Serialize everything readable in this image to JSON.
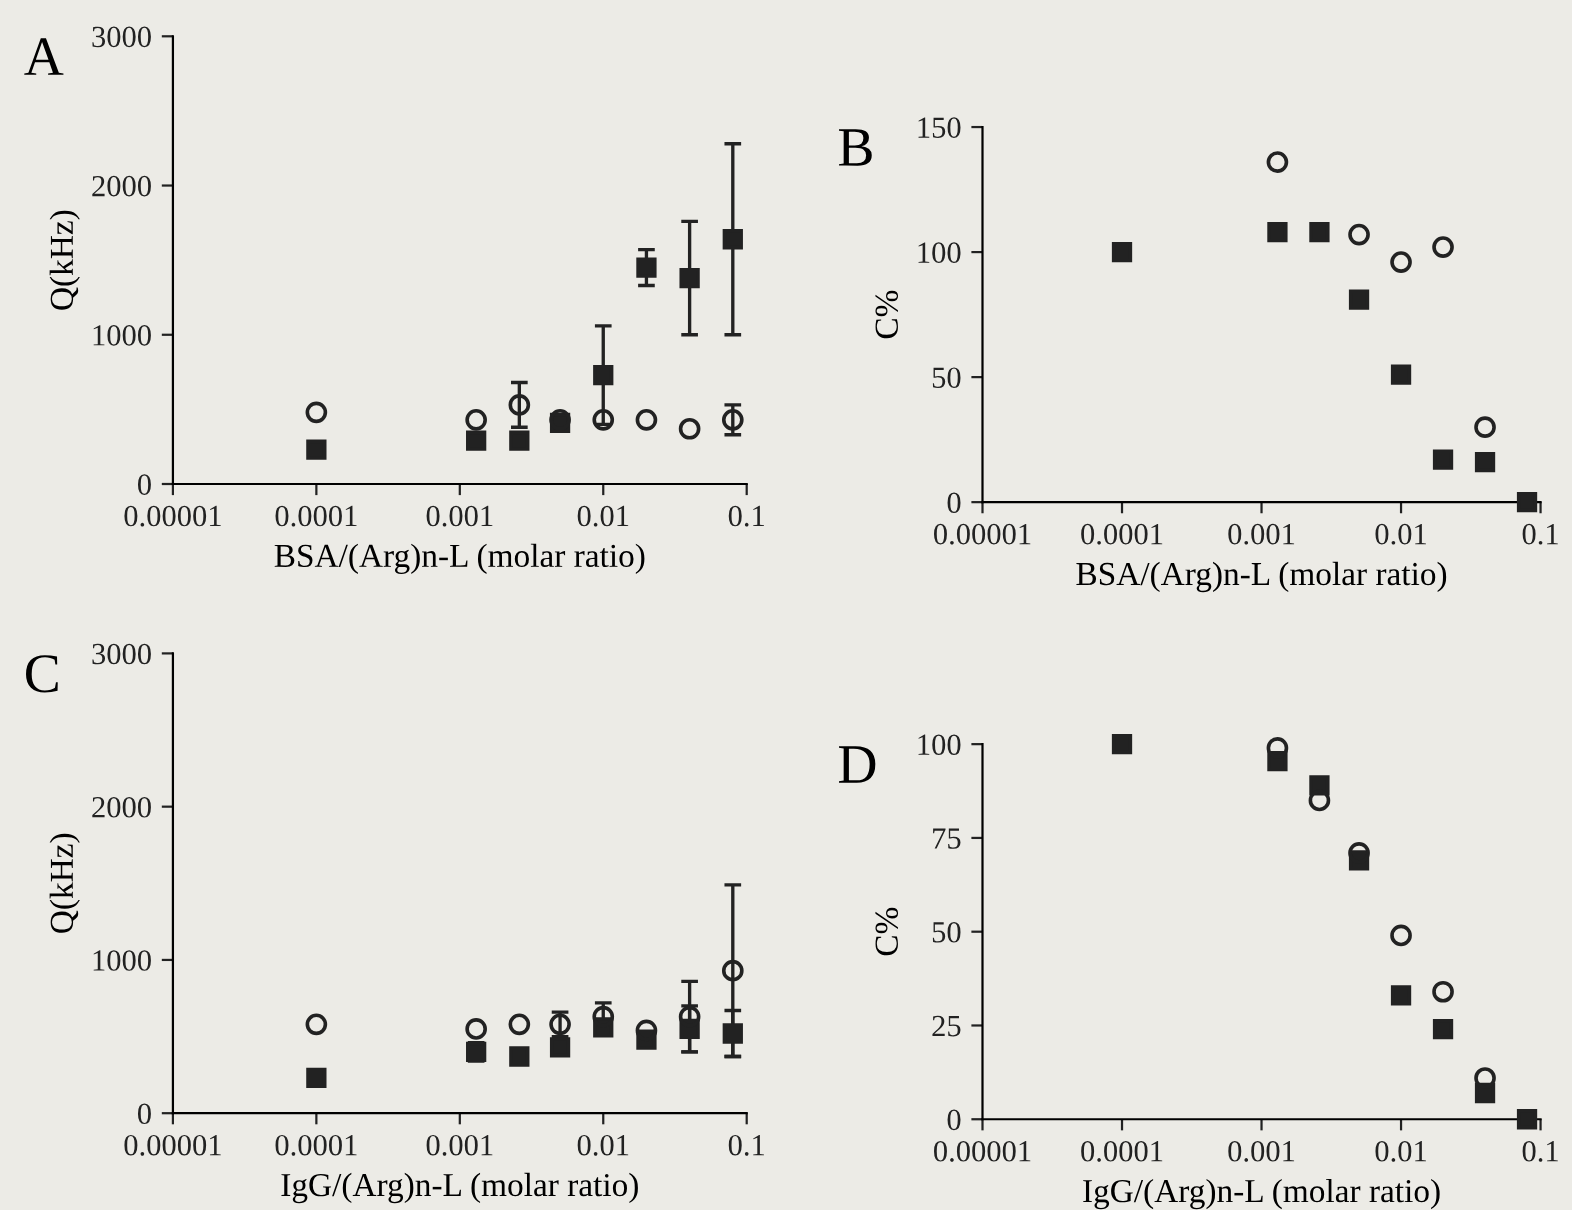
{
  "chart_data": [
    {
      "type": "scatter",
      "title": "A",
      "xlabel": "BSA/(Arg)n-L (molar ratio)",
      "ylabel": "Q(kHz)",
      "log": "x",
      "xlim": [
        1e-05,
        0.1
      ],
      "xticks": [
        {
          "value": 1e-05,
          "label": "0.00001"
        },
        {
          "value": 0.0001,
          "label": "0.0001"
        },
        {
          "value": 0.001,
          "label": "0.001"
        },
        {
          "value": 0.01,
          "label": "0.01"
        },
        {
          "value": 0.1,
          "label": "0.1"
        }
      ],
      "ylim": [
        0,
        3000
      ],
      "yticks": [
        0,
        1000,
        2000,
        3000
      ],
      "grid": false,
      "series": [
        {
          "marker": "square",
          "color": "#222222",
          "x": [
            0.0001,
            0.0013,
            0.0026,
            0.005,
            0.01,
            0.02,
            0.04,
            0.08
          ],
          "values": [
            230,
            290,
            290,
            410,
            730,
            1450,
            1380,
            1640
          ],
          "errors": [
            null,
            null,
            null,
            null,
            330,
            120,
            380,
            640
          ]
        },
        {
          "marker": "circle",
          "color": "#222222",
          "x": [
            0.0001,
            0.0013,
            0.0026,
            0.005,
            0.01,
            0.02,
            0.04,
            0.08
          ],
          "values": [
            480,
            430,
            530,
            430,
            430,
            430,
            370,
            430
          ],
          "errors": [
            null,
            null,
            150,
            null,
            null,
            null,
            null,
            100
          ]
        }
      ]
    },
    {
      "type": "scatter",
      "title": "B",
      "xlabel": "BSA/(Arg)n-L (molar ratio)",
      "ylabel": "C%",
      "log": "x",
      "xlim": [
        1e-05,
        0.1
      ],
      "xticks": [
        {
          "value": 1e-05,
          "label": "0.00001"
        },
        {
          "value": 0.0001,
          "label": "0.0001"
        },
        {
          "value": 0.001,
          "label": "0.001"
        },
        {
          "value": 0.01,
          "label": "0.01"
        },
        {
          "value": 0.1,
          "label": "0.1"
        }
      ],
      "ylim": [
        0,
        150
      ],
      "yticks": [
        0,
        50,
        100,
        150
      ],
      "grid": false,
      "series": [
        {
          "marker": "square",
          "color": "#222222",
          "x": [
            0.0001,
            0.0013,
            0.0026,
            0.005,
            0.01,
            0.02,
            0.04,
            0.08
          ],
          "values": [
            100,
            108,
            108,
            81,
            51,
            17,
            16,
            0
          ]
        },
        {
          "marker": "circle",
          "color": "#222222",
          "x": [
            0.0013,
            0.005,
            0.01,
            0.02,
            0.04
          ],
          "values": [
            136,
            107,
            96,
            102,
            30
          ]
        }
      ]
    },
    {
      "type": "scatter",
      "title": "C",
      "xlabel": "IgG/(Arg)n-L (molar ratio)",
      "ylabel": "Q(kHz)",
      "log": "x",
      "xlim": [
        1e-05,
        0.1
      ],
      "xticks": [
        {
          "value": 1e-05,
          "label": "0.00001"
        },
        {
          "value": 0.0001,
          "label": "0.0001"
        },
        {
          "value": 0.001,
          "label": "0.001"
        },
        {
          "value": 0.01,
          "label": "0.01"
        },
        {
          "value": 0.1,
          "label": "0.1"
        }
      ],
      "ylim": [
        0,
        3000
      ],
      "yticks": [
        0,
        1000,
        2000,
        3000
      ],
      "grid": false,
      "series": [
        {
          "marker": "square",
          "color": "#222222",
          "x": [
            0.0001,
            0.0013,
            0.0026,
            0.005,
            0.01,
            0.02,
            0.04,
            0.08
          ],
          "values": [
            230,
            400,
            370,
            430,
            560,
            480,
            550,
            520
          ],
          "errors": [
            null,
            60,
            null,
            50,
            40,
            null,
            150,
            150
          ]
        },
        {
          "marker": "circle",
          "color": "#222222",
          "x": [
            0.0001,
            0.0013,
            0.0026,
            0.005,
            0.01,
            0.02,
            0.04,
            0.08
          ],
          "values": [
            580,
            550,
            580,
            580,
            630,
            540,
            630,
            930
          ],
          "errors": [
            null,
            null,
            null,
            80,
            90,
            null,
            230,
            560
          ]
        }
      ]
    },
    {
      "type": "scatter",
      "title": "D",
      "xlabel": "IgG/(Arg)n-L (molar ratio)",
      "ylabel": "C%",
      "log": "x",
      "xlim": [
        1e-05,
        0.1
      ],
      "xticks": [
        {
          "value": 1e-05,
          "label": "0.00001"
        },
        {
          "value": 0.0001,
          "label": "0.0001"
        },
        {
          "value": 0.001,
          "label": "0.001"
        },
        {
          "value": 0.01,
          "label": "0.01"
        },
        {
          "value": 0.1,
          "label": "0.1"
        }
      ],
      "ylim": [
        0,
        100
      ],
      "yticks": [
        0,
        25,
        50,
        75,
        100
      ],
      "grid": false,
      "series": [
        {
          "marker": "square",
          "color": "#222222",
          "x": [
            0.0001,
            0.0013,
            0.0026,
            0.005,
            0.01,
            0.02,
            0.04,
            0.08
          ],
          "values": [
            100,
            95.5,
            89,
            69,
            33,
            24,
            7,
            0
          ]
        },
        {
          "marker": "circle",
          "color": "#222222",
          "x": [
            0.0013,
            0.0026,
            0.005,
            0.01,
            0.02,
            0.04
          ],
          "values": [
            99,
            85,
            71,
            49,
            34,
            11
          ]
        }
      ]
    }
  ]
}
